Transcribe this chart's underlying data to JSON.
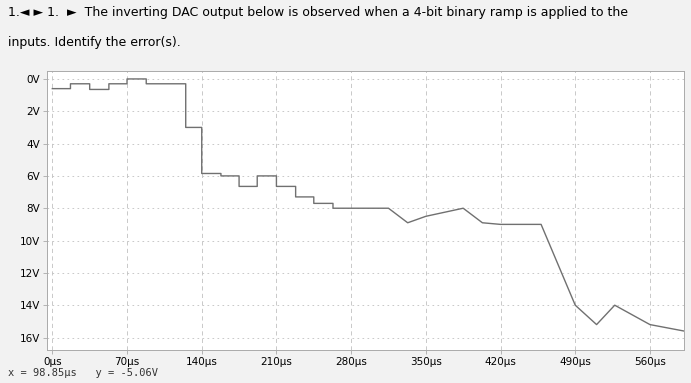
{
  "title_line1": "1.◄ ► 1.  ►  The inverting DAC output below is observed when a 4-bit binary ramp is applied to the",
  "title_line2": "inputs. Identify the error(s).",
  "status_bar": "x = 98.85μs   y = -5.06V",
  "xtick_vals": [
    0,
    70,
    140,
    210,
    280,
    350,
    420,
    490,
    560
  ],
  "xtick_labels": [
    "0μs",
    "70μs",
    "140μs",
    "210μs",
    "280μs",
    "350μs",
    "420μs",
    "490μs",
    "560μs"
  ],
  "ytick_vals": [
    0,
    -2,
    -4,
    -6,
    -8,
    -10,
    -12,
    -14,
    -16
  ],
  "ytick_labels": [
    "0V",
    "2V",
    "4V",
    "6V",
    "8V",
    "10V",
    "12V",
    "14V",
    "16V"
  ],
  "ylim": [
    -16.8,
    0.5
  ],
  "xlim": [
    -5,
    592
  ],
  "line_color": "#707070",
  "grid_v_color": "#c0c0c0",
  "grid_h_color": "#c0c0c0",
  "bg_outer": "#f2f2f2",
  "bg_plot": "#ffffff",
  "status_bg": "#e8e8e8",
  "waveform_x": [
    0,
    17,
    17,
    35,
    35,
    53,
    53,
    70,
    70,
    88,
    88,
    105,
    105,
    125,
    125,
    140,
    140,
    158,
    158,
    175,
    175,
    192,
    192,
    210,
    210,
    228,
    228,
    245,
    245,
    263,
    263,
    280,
    280,
    315,
    315,
    333,
    333,
    350,
    350,
    385,
    385,
    403,
    403,
    420,
    420,
    458,
    458,
    490,
    490,
    510,
    510,
    527,
    527,
    560,
    560,
    592
  ],
  "waveform_y": [
    -0.6,
    -0.6,
    -0.3,
    -0.3,
    -0.65,
    -0.65,
    -0.3,
    -0.3,
    0.0,
    0.0,
    -0.3,
    -0.3,
    -0.3,
    -0.3,
    -3.0,
    -3.0,
    -5.85,
    -5.85,
    -6.0,
    -6.0,
    -6.65,
    -6.65,
    -6.0,
    -6.0,
    -6.65,
    -6.65,
    -7.3,
    -7.3,
    -7.7,
    -7.7,
    -8.0,
    -8.0,
    -8.0,
    -8.0,
    -8.0,
    -8.9,
    -8.9,
    -8.5,
    -8.5,
    -8.0,
    -8.0,
    -8.9,
    -8.9,
    -9.0,
    -9.0,
    -9.0,
    -9.0,
    -14.0,
    -14.0,
    -15.2,
    -15.2,
    -14.0,
    -14.0,
    -15.2,
    -15.2,
    -15.6
  ]
}
